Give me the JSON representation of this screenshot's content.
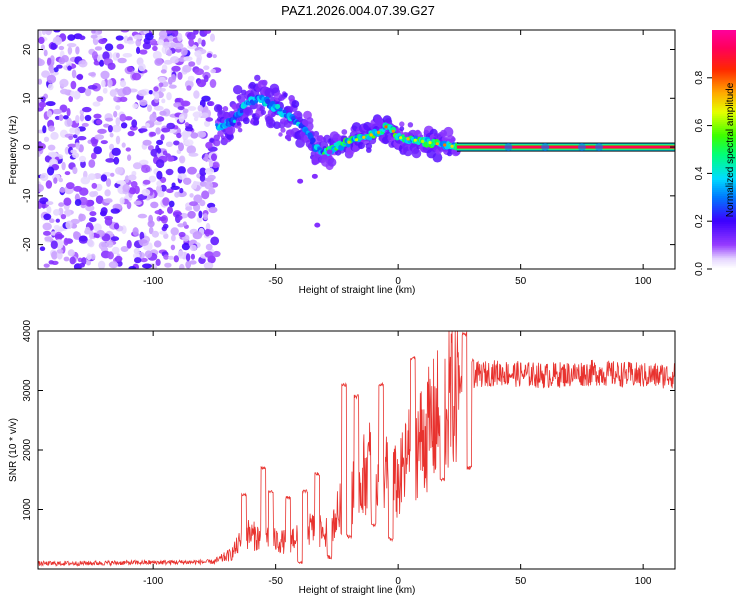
{
  "title": "PAZ1.2026.004.07.39.G27",
  "chart_data": [
    {
      "type": "heatmap",
      "xlabel": "Height of straight line (km)",
      "ylabel": "Frequency (Hz)",
      "xlim": [
        -147,
        113
      ],
      "ylim": [
        -25,
        24
      ],
      "xticks": [
        -100,
        -50,
        0,
        50,
        100
      ],
      "yticks": [
        -20,
        -10,
        0,
        10,
        20
      ],
      "xtick_labels": [
        "-100",
        "-50",
        "0",
        "50",
        "100"
      ],
      "ytick_labels": [
        "-20",
        "-10",
        "0",
        "10",
        "20"
      ],
      "colorbar": {
        "label": "Normalized spectral amplitude",
        "range": [
          0,
          1
        ],
        "ticks": [
          0.0,
          0.2,
          0.4,
          0.6,
          0.8
        ],
        "tick_labels": [
          "0.0",
          "0.2",
          "0.4",
          "0.6",
          "0.8"
        ]
      },
      "features": {
        "noise_region_x": [
          -147,
          -74
        ],
        "signal_track": [
          {
            "x": -74,
            "y": 4
          },
          {
            "x": -68,
            "y": 5
          },
          {
            "x": -62,
            "y": 9
          },
          {
            "x": -56,
            "y": 10
          },
          {
            "x": -50,
            "y": 8
          },
          {
            "x": -44,
            "y": 6
          },
          {
            "x": -38,
            "y": 4
          },
          {
            "x": -34,
            "y": 0
          },
          {
            "x": -30,
            "y": -1
          },
          {
            "x": -26,
            "y": 0
          },
          {
            "x": -20,
            "y": 1
          },
          {
            "x": -14,
            "y": 2
          },
          {
            "x": -8,
            "y": 3
          },
          {
            "x": -4,
            "y": 4.5
          },
          {
            "x": 0,
            "y": 2
          },
          {
            "x": 6,
            "y": 1.5
          },
          {
            "x": 12,
            "y": 1
          },
          {
            "x": 18,
            "y": 0.5
          },
          {
            "x": 24,
            "y": 0
          }
        ],
        "stable_line_x": [
          24,
          113
        ],
        "stable_line_y": 0
      }
    },
    {
      "type": "line",
      "xlabel": "Height of straight line (km)",
      "ylabel": "SNR (10 * v/v)",
      "xlim": [
        -147,
        113
      ],
      "ylim": [
        0,
        4000
      ],
      "xticks": [
        -100,
        -50,
        0,
        50,
        100
      ],
      "yticks": [
        1000,
        2000,
        3000,
        4000
      ],
      "xtick_labels": [
        "-100",
        "-50",
        "0",
        "50",
        "100"
      ],
      "ytick_labels": [
        "1000",
        "2000",
        "3000",
        "4000"
      ],
      "series": [
        {
          "name": "SNR",
          "color": "#e8322e",
          "envelope": [
            {
              "x": -147,
              "y": 90
            },
            {
              "x": -75,
              "y": 120
            },
            {
              "x": -68,
              "y": 250
            },
            {
              "x": -62,
              "y": 600
            },
            {
              "x": -55,
              "y": 500
            },
            {
              "x": -45,
              "y": 450
            },
            {
              "x": -38,
              "y": 700
            },
            {
              "x": -30,
              "y": 600
            },
            {
              "x": -25,
              "y": 900
            },
            {
              "x": -20,
              "y": 1300
            },
            {
              "x": -15,
              "y": 1500
            },
            {
              "x": -10,
              "y": 1900
            },
            {
              "x": -5,
              "y": 1600
            },
            {
              "x": 0,
              "y": 1400
            },
            {
              "x": 5,
              "y": 2000
            },
            {
              "x": 10,
              "y": 2200
            },
            {
              "x": 15,
              "y": 2500
            },
            {
              "x": 20,
              "y": 2800
            },
            {
              "x": 25,
              "y": 3100
            },
            {
              "x": 30,
              "y": 3250
            },
            {
              "x": 40,
              "y": 3300
            },
            {
              "x": 60,
              "y": 3250
            },
            {
              "x": 80,
              "y": 3300
            },
            {
              "x": 100,
              "y": 3250
            },
            {
              "x": 113,
              "y": 3250
            }
          ],
          "peaks": [
            {
              "x": -63,
              "y": 1250
            },
            {
              "x": -55,
              "y": 1700
            },
            {
              "x": -52,
              "y": 1300
            },
            {
              "x": -45,
              "y": 1200
            },
            {
              "x": -38,
              "y": 1300
            },
            {
              "x": -33,
              "y": 1600
            },
            {
              "x": -22,
              "y": 3100
            },
            {
              "x": -17,
              "y": 2900
            },
            {
              "x": -7,
              "y": 3100
            },
            {
              "x": 6,
              "y": 3550
            },
            {
              "x": 27,
              "y": 3950
            },
            {
              "x": 30,
              "y": 3500
            }
          ],
          "dips": [
            {
              "x": -40,
              "y": 100
            },
            {
              "x": -28,
              "y": 200
            },
            {
              "x": -20,
              "y": 550
            },
            {
              "x": -10,
              "y": 750
            },
            {
              "x": -3,
              "y": 500
            },
            {
              "x": 18,
              "y": 1500
            },
            {
              "x": 29,
              "y": 1700
            }
          ]
        }
      ]
    }
  ]
}
